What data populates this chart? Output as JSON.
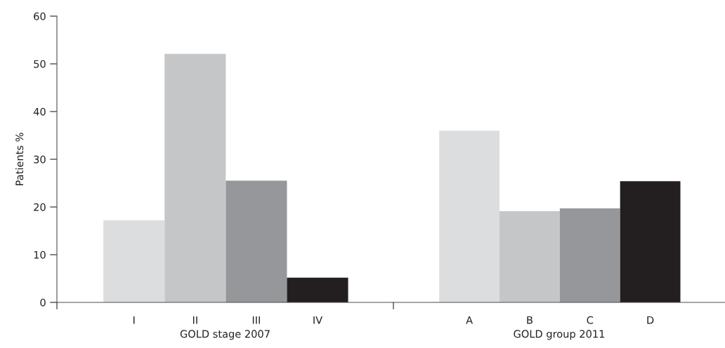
{
  "chart_data": [
    {
      "type": "bar",
      "xlabel": "GOLD stage 2007",
      "ylabel": "Patients %",
      "categories": [
        "I",
        "II",
        "III",
        "IV"
      ],
      "values": [
        17.2,
        52.1,
        25.5,
        5.2
      ],
      "colors": [
        "#dcdddf",
        "#c5c6c8",
        "#96979a",
        "#231f20"
      ],
      "ylim": [
        0,
        60
      ],
      "yticks": [
        0,
        10,
        20,
        30,
        40,
        50,
        60
      ],
      "grid": false
    },
    {
      "type": "bar",
      "xlabel": "GOLD group 2011",
      "categories": [
        "A",
        "B",
        "C",
        "D"
      ],
      "values": [
        36.0,
        19.1,
        19.7,
        25.4
      ],
      "colors": [
        "#dcdddf",
        "#c5c6c8",
        "#96979a",
        "#231f20"
      ],
      "ylim": [
        0,
        60
      ],
      "yticks": [
        0,
        10,
        20,
        30,
        40,
        50,
        60
      ],
      "tick_labels": "x",
      "grid": false
    }
  ]
}
